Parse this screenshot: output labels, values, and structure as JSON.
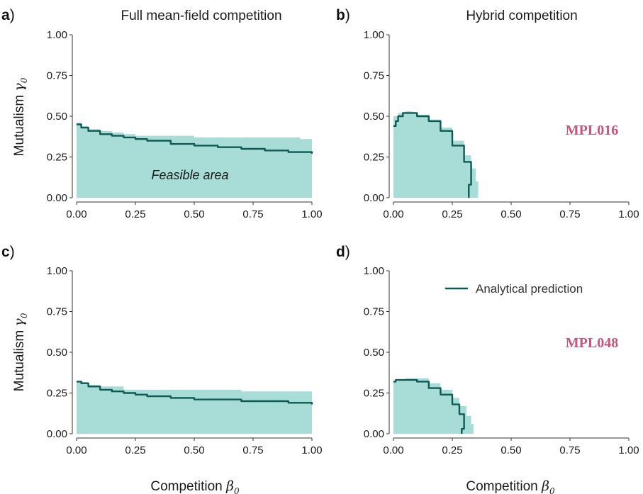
{
  "colors": {
    "feasible": "#a8dcd7",
    "analytical": "#0d5a55",
    "network_label": "#c8547a"
  },
  "figure": {
    "xlabel_text": "Competition",
    "xlabel_symbol": "β",
    "xlabel_sub": "0",
    "ylabel_text": "Mutualism",
    "ylabel_symbol": "γ",
    "ylabel_sub": "0",
    "legend_label": "Analytical prediction",
    "annotation": "Feasible area"
  },
  "chart_data": [
    {
      "panel": "a",
      "type": "area",
      "title": "Full mean-field competition",
      "network": "",
      "xlim": [
        0,
        1
      ],
      "ylim": [
        0,
        1
      ],
      "xticks": [
        "0.00",
        "0.25",
        "0.50",
        "0.75",
        "1.00"
      ],
      "yticks": [
        "0.00",
        "0.25",
        "0.50",
        "0.75",
        "1.00"
      ],
      "feasible_boundary": {
        "x": [
          0.0,
          0.02,
          0.05,
          0.1,
          0.15,
          0.2,
          0.25,
          0.3,
          0.4,
          0.5,
          0.6,
          0.7,
          0.8,
          0.9,
          0.95,
          1.0
        ],
        "y": [
          0.46,
          0.44,
          0.42,
          0.41,
          0.4,
          0.39,
          0.38,
          0.38,
          0.38,
          0.37,
          0.37,
          0.37,
          0.37,
          0.37,
          0.36,
          0.36
        ]
      },
      "analytical": {
        "x": [
          0.0,
          0.02,
          0.05,
          0.1,
          0.15,
          0.2,
          0.25,
          0.3,
          0.4,
          0.5,
          0.6,
          0.7,
          0.8,
          0.9,
          1.0
        ],
        "y": [
          0.45,
          0.43,
          0.41,
          0.39,
          0.38,
          0.37,
          0.36,
          0.35,
          0.33,
          0.32,
          0.31,
          0.3,
          0.29,
          0.28,
          0.27
        ]
      }
    },
    {
      "panel": "b",
      "type": "area",
      "title": "Hybrid competition",
      "network": "MPL016",
      "xlim": [
        0,
        1
      ],
      "ylim": [
        0,
        1
      ],
      "xticks": [
        "0.00",
        "0.25",
        "0.50",
        "0.75",
        "1.00"
      ],
      "yticks": [
        "0.00",
        "0.25",
        "0.50",
        "0.75",
        "1.00"
      ],
      "feasible_boundary": {
        "x": [
          0.0,
          0.02,
          0.05,
          0.08,
          0.1,
          0.15,
          0.2,
          0.25,
          0.3,
          0.33,
          0.35,
          0.36,
          0.36
        ],
        "y": [
          0.5,
          0.52,
          0.53,
          0.52,
          0.51,
          0.48,
          0.43,
          0.35,
          0.26,
          0.18,
          0.1,
          0.04,
          0.0
        ]
      },
      "analytical": {
        "x": [
          0.0,
          0.01,
          0.02,
          0.04,
          0.06,
          0.1,
          0.15,
          0.2,
          0.25,
          0.3,
          0.33,
          0.33,
          0.32
        ],
        "y": [
          0.44,
          0.47,
          0.5,
          0.52,
          0.52,
          0.5,
          0.47,
          0.41,
          0.32,
          0.22,
          0.16,
          0.08,
          0.0
        ]
      }
    },
    {
      "panel": "c",
      "type": "area",
      "title": "",
      "network": "",
      "xlim": [
        0,
        1
      ],
      "ylim": [
        0,
        1
      ],
      "xticks": [
        "0.00",
        "0.25",
        "0.50",
        "0.75",
        "1.00"
      ],
      "yticks": [
        "0.00",
        "0.25",
        "0.50",
        "0.75",
        "1.00"
      ],
      "feasible_boundary": {
        "x": [
          0.0,
          0.03,
          0.05,
          0.1,
          0.2,
          0.3,
          0.5,
          0.7,
          0.9,
          1.0
        ],
        "y": [
          0.32,
          0.31,
          0.3,
          0.29,
          0.27,
          0.27,
          0.27,
          0.26,
          0.26,
          0.26
        ]
      },
      "analytical": {
        "x": [
          0.0,
          0.02,
          0.05,
          0.1,
          0.15,
          0.2,
          0.25,
          0.3,
          0.4,
          0.5,
          0.6,
          0.7,
          0.8,
          0.9,
          1.0
        ],
        "y": [
          0.32,
          0.31,
          0.29,
          0.27,
          0.26,
          0.25,
          0.24,
          0.23,
          0.22,
          0.21,
          0.21,
          0.2,
          0.2,
          0.19,
          0.18
        ]
      }
    },
    {
      "panel": "d",
      "type": "area",
      "title": "",
      "network": "MPL048",
      "xlim": [
        0,
        1
      ],
      "ylim": [
        0,
        1
      ],
      "xticks": [
        "0.00",
        "0.25",
        "0.50",
        "0.75",
        "1.00"
      ],
      "yticks": [
        "0.00",
        "0.25",
        "0.50",
        "0.75",
        "1.00"
      ],
      "feasible_boundary": {
        "x": [
          0.0,
          0.02,
          0.05,
          0.1,
          0.15,
          0.2,
          0.25,
          0.28,
          0.31,
          0.33,
          0.34,
          0.34
        ],
        "y": [
          0.32,
          0.33,
          0.34,
          0.34,
          0.31,
          0.27,
          0.22,
          0.17,
          0.11,
          0.06,
          0.02,
          0.0
        ]
      },
      "analytical": {
        "x": [
          0.0,
          0.01,
          0.03,
          0.08,
          0.1,
          0.15,
          0.2,
          0.25,
          0.28,
          0.3,
          0.3,
          0.29
        ],
        "y": [
          0.32,
          0.33,
          0.33,
          0.33,
          0.32,
          0.28,
          0.24,
          0.18,
          0.12,
          0.08,
          0.03,
          0.0
        ]
      }
    }
  ]
}
